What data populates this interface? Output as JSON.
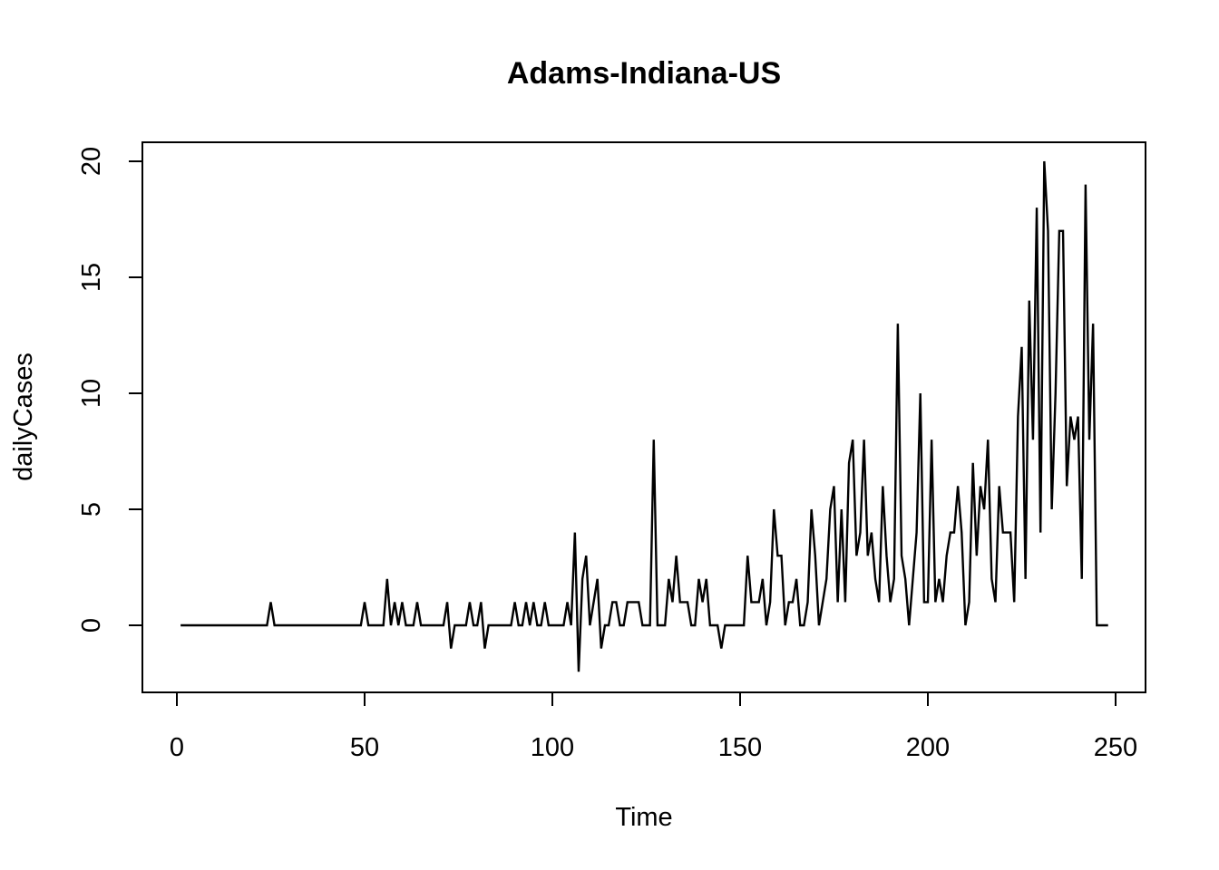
{
  "chart_data": {
    "type": "line",
    "title": "Adams-Indiana-US",
    "xlabel": "Time",
    "ylabel": "dailyCases",
    "xlim": [
      1,
      248
    ],
    "ylim": [
      -2,
      20
    ],
    "x_ticks": [
      0,
      50,
      100,
      150,
      200,
      250
    ],
    "y_ticks": [
      0,
      5,
      10,
      15,
      20
    ],
    "x_tick_labels": [
      "0",
      "50",
      "100",
      "150",
      "200",
      "250"
    ],
    "y_tick_labels": [
      "0",
      "5",
      "10",
      "15",
      "20"
    ],
    "grid": false,
    "legend": "none",
    "x_start": 1,
    "series": [
      {
        "values": [
          0,
          0,
          0,
          0,
          0,
          0,
          0,
          0,
          0,
          0,
          0,
          0,
          0,
          0,
          0,
          0,
          0,
          0,
          0,
          0,
          0,
          0,
          0,
          0,
          1,
          0,
          0,
          0,
          0,
          0,
          0,
          0,
          0,
          0,
          0,
          0,
          0,
          0,
          0,
          0,
          0,
          0,
          0,
          0,
          0,
          0,
          0,
          0,
          0,
          1,
          0,
          0,
          0,
          0,
          0,
          2,
          0,
          1,
          0,
          1,
          0,
          0,
          0,
          1,
          0,
          0,
          0,
          0,
          0,
          0,
          0,
          1,
          -1,
          0,
          0,
          0,
          0,
          1,
          0,
          0,
          1,
          -1,
          0,
          0,
          0,
          0,
          0,
          0,
          0,
          1,
          0,
          0,
          1,
          0,
          1,
          0,
          0,
          1,
          0,
          0,
          0,
          0,
          0,
          1,
          0,
          4,
          -2,
          2,
          3,
          0,
          1,
          2,
          -1,
          0,
          0,
          1,
          1,
          0,
          0,
          1,
          1,
          1,
          1,
          0,
          0,
          0,
          8,
          0,
          0,
          0,
          2,
          1,
          3,
          1,
          1,
          1,
          0,
          0,
          2,
          1,
          2,
          0,
          0,
          0,
          -1,
          0,
          0,
          0,
          0,
          0,
          0,
          3,
          1,
          1,
          1,
          2,
          0,
          1,
          5,
          3,
          3,
          0,
          1,
          1,
          2,
          0,
          0,
          1,
          5,
          3,
          0,
          1,
          2,
          5,
          6,
          1,
          5,
          1,
          7,
          8,
          3,
          4,
          8,
          3,
          4,
          2,
          1,
          6,
          3,
          1,
          2,
          13,
          3,
          2,
          0,
          2,
          4,
          10,
          1,
          1,
          8,
          1,
          2,
          1,
          3,
          4,
          4,
          6,
          4,
          0,
          1,
          7,
          3,
          6,
          5,
          8,
          2,
          1,
          6,
          4,
          4,
          4,
          1,
          9,
          12,
          2,
          14,
          8,
          18,
          4,
          20,
          17,
          5,
          10,
          17,
          17,
          6,
          9,
          8,
          9,
          2,
          19,
          8,
          13,
          0,
          0,
          0,
          0
        ]
      }
    ]
  }
}
